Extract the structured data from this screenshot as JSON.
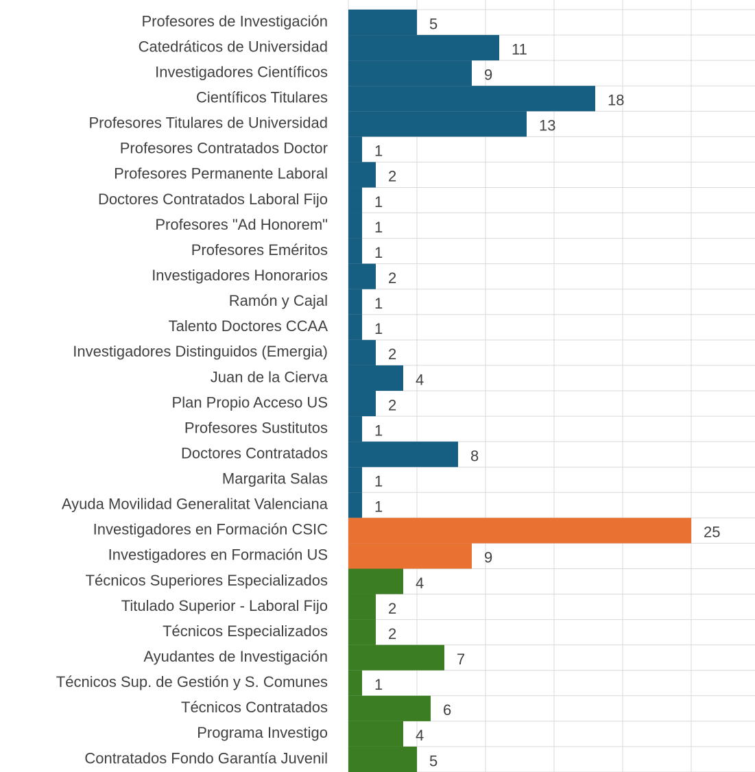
{
  "chart_data": {
    "type": "barh",
    "categories": [
      "Profesores de Investigación",
      "Catedráticos de Universidad",
      "Investigadores Científicos",
      "Científicos Titulares",
      "Profesores Titulares de Universidad",
      "Profesores Contratados Doctor",
      "Profesores Permanente Laboral",
      "Doctores Contratados Laboral Fijo",
      "Profesores \"Ad Honorem\"",
      "Profesores Eméritos",
      "Investigadores Honorarios",
      "Ramón y Cajal",
      "Talento Doctores CCAA",
      "Investigadores Distinguidos (Emergia)",
      "Juan de la Cierva",
      "Plan Propio Acceso US",
      "Profesores Sustitutos",
      "Doctores Contratados",
      "Margarita Salas",
      "Ayuda Movilidad Generalitat Valenciana",
      "Investigadores en Formación CSIC",
      "Investigadores en Formación US",
      "Técnicos Superiores Especializados",
      "Titulado Superior - Laboral Fijo",
      "Técnicos Especializados",
      "Ayudantes de Investigación",
      "Técnicos Sup. de Gestión y S. Comunes",
      "Técnicos Contratados",
      "Programa Investigo",
      "Contratados Fondo Garantía Juvenil"
    ],
    "values": [
      5,
      11,
      9,
      18,
      13,
      1,
      2,
      1,
      1,
      1,
      2,
      1,
      1,
      2,
      4,
      2,
      1,
      8,
      1,
      1,
      25,
      9,
      4,
      2,
      2,
      7,
      1,
      6,
      4,
      5
    ],
    "colors": [
      "#175f82",
      "#175f82",
      "#175f82",
      "#175f82",
      "#175f82",
      "#175f82",
      "#175f82",
      "#175f82",
      "#175f82",
      "#175f82",
      "#175f82",
      "#175f82",
      "#175f82",
      "#175f82",
      "#175f82",
      "#175f82",
      "#175f82",
      "#175f82",
      "#175f82",
      "#175f82",
      "#e97132",
      "#e97132",
      "#3b7d23",
      "#3b7d23",
      "#3b7d23",
      "#3b7d23",
      "#3b7d23",
      "#3b7d23",
      "#3b7d23",
      "#3b7d23"
    ],
    "xlim": [
      0,
      30
    ],
    "xticks": [
      0,
      5,
      10,
      15,
      20,
      25,
      30
    ],
    "grid": true
  }
}
